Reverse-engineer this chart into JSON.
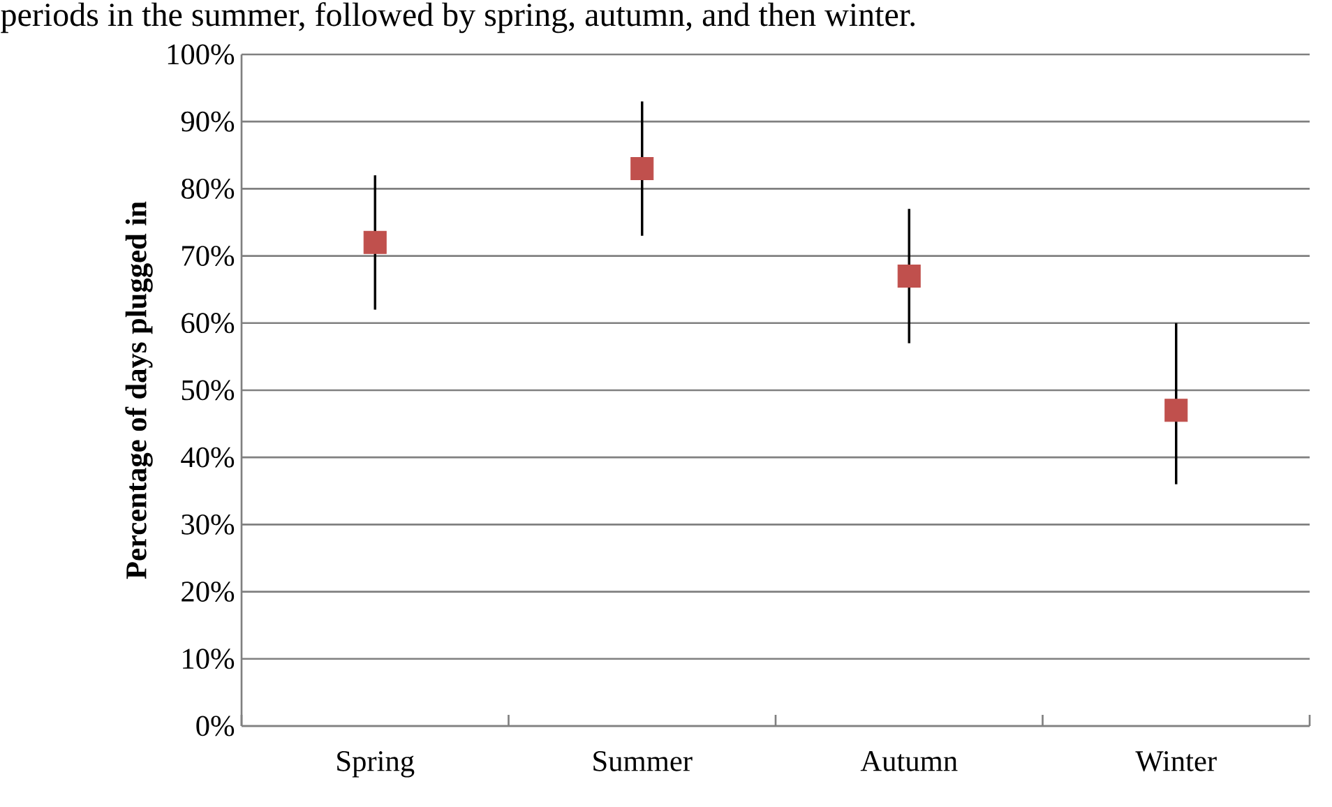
{
  "chart_data": {
    "type": "scatter",
    "annotations": [
      "periods in the summer, followed by spring, autumn, and then winter."
    ],
    "ylabel": "Percentage of days plugged in",
    "categories": [
      "Spring",
      "Summer",
      "Autumn",
      "Winter"
    ],
    "values": [
      72,
      83,
      67,
      47
    ],
    "errors": [
      [
        62,
        82
      ],
      [
        73,
        93
      ],
      [
        57,
        77
      ],
      [
        36,
        60
      ]
    ],
    "color": "#c0504d",
    "marker": "square",
    "grid": "y",
    "ylim": [
      0,
      100
    ],
    "yticks": [
      {
        "value": 0,
        "label": "0%"
      },
      {
        "value": 10,
        "label": "10%"
      },
      {
        "value": 20,
        "label": "20%"
      },
      {
        "value": 30,
        "label": "30%"
      },
      {
        "value": 40,
        "label": "40%"
      },
      {
        "value": 50,
        "label": "50%"
      },
      {
        "value": 60,
        "label": "60%"
      },
      {
        "value": 70,
        "label": "70%"
      },
      {
        "value": 80,
        "label": "80%"
      },
      {
        "value": 90,
        "label": "90%"
      },
      {
        "value": 100,
        "label": "100%"
      }
    ]
  }
}
